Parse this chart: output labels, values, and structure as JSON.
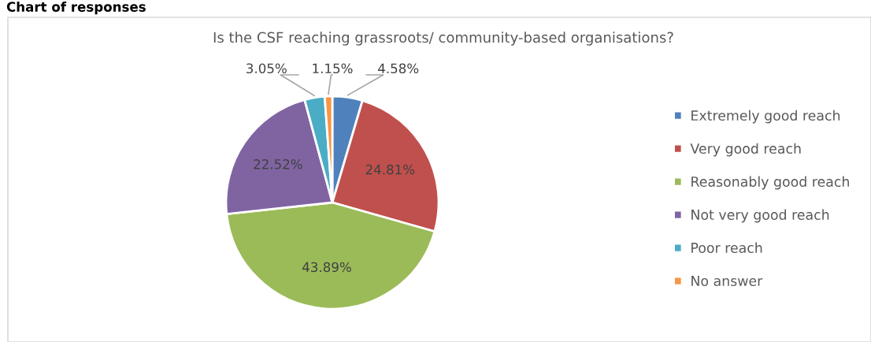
{
  "chart_data": {
    "type": "pie",
    "title": "Is the CSF reaching grassroots/ community-based organisations?",
    "annotations": [
      "Chart of responses"
    ],
    "categories": [
      "Extremely good reach",
      "Very good reach",
      "Reasonably good reach",
      "Not very good reach",
      "Poor reach",
      "No answer"
    ],
    "values": [
      4.58,
      24.81,
      43.89,
      22.52,
      3.05,
      1.15
    ],
    "colors": [
      "#4f81bd",
      "#c0504d",
      "#9bbb59",
      "#8064a2",
      "#4bacc6",
      "#f79646"
    ],
    "value_labels": [
      "4.58%",
      "24.81%",
      "43.89%",
      "22.52%",
      "3.05%",
      "1.15%"
    ],
    "legend": "right"
  }
}
